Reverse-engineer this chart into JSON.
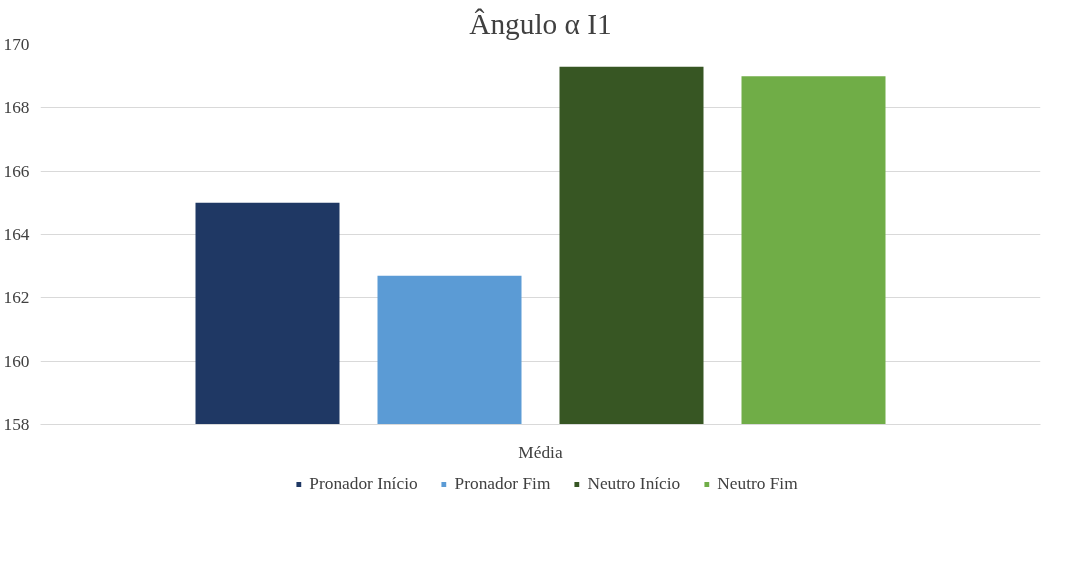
{
  "chart_data": {
    "type": "bar",
    "title": "Ângulo α I1",
    "categories": [
      "Média"
    ],
    "series": [
      {
        "name": "Pronador Início",
        "color": "#1f3864",
        "values": [
          165.0
        ]
      },
      {
        "name": "Pronador Fim",
        "color": "#5b9bd5",
        "values": [
          162.7
        ]
      },
      {
        "name": "Neutro Início",
        "color": "#375623",
        "values": [
          169.3
        ]
      },
      {
        "name": "Neutro Fim",
        "color": "#70ad47",
        "values": [
          169.0
        ]
      }
    ],
    "ylim": [
      158,
      170
    ],
    "yticks": [
      158,
      160,
      162,
      164,
      166,
      168,
      170
    ],
    "grid": "y",
    "legend": "bottom"
  }
}
